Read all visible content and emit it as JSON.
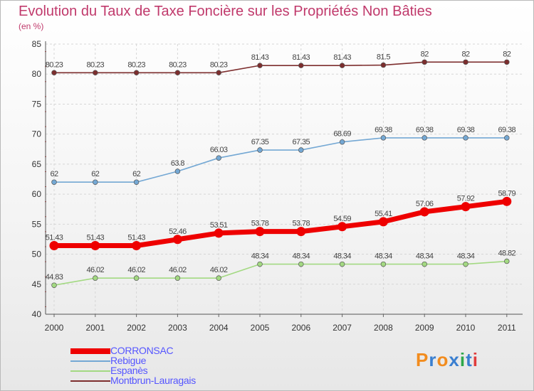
{
  "title": "Evolution du Taux de Taxe Foncière sur les Propriétés Non Bâties",
  "subtitle": "(en %)",
  "logo": {
    "text": "Proxiti",
    "letter_colors": [
      "#f28c1e",
      "#3a7fd0",
      "#f28c1e",
      "#3a7fd0",
      "#2ea84a",
      "#3a7fd0",
      "#e03c3c"
    ]
  },
  "chart_data": {
    "type": "line",
    "title": "Evolution du Taux de Taxe Foncière sur les Propriétés Non Bâties",
    "subtitle": "(en %)",
    "xlabel": "",
    "ylabel": "",
    "ylim": [
      40,
      85
    ],
    "yticks": [
      40,
      45,
      50,
      55,
      60,
      65,
      70,
      75,
      80,
      85
    ],
    "x": [
      "2000",
      "2001",
      "2002",
      "2003",
      "2004",
      "2005",
      "2006",
      "2007",
      "2008",
      "2009",
      "2010",
      "2011"
    ],
    "grid": true,
    "legend_position": "bottom-left",
    "series": [
      {
        "name": "CORRONSAC",
        "color": "#ee0000",
        "values": [
          51.43,
          51.43,
          51.43,
          52.46,
          53.51,
          53.78,
          53.78,
          54.59,
          55.41,
          57.06,
          57.92,
          58.79
        ],
        "labels": [
          "51.43",
          "51.43",
          "51.43",
          "52.46",
          "53.51",
          "53.78",
          "53.78",
          "54.59",
          "55.41",
          "57.06",
          "57.92",
          "58.79"
        ]
      },
      {
        "name": "Rebigue",
        "color": "#74a8d4",
        "values": [
          62,
          62,
          62,
          63.8,
          66.03,
          67.35,
          67.35,
          68.69,
          69.38,
          69.38,
          69.38,
          69.38
        ],
        "labels": [
          "62",
          "62",
          "62",
          "63.8",
          "66.03",
          "67.35",
          "67.35",
          "68.69",
          "69.38",
          "69.38",
          "69.38",
          "69.38"
        ]
      },
      {
        "name": "Espanès",
        "color": "#a3d982",
        "values": [
          44.83,
          46.02,
          46.02,
          46.02,
          46.02,
          48.34,
          48.34,
          48.34,
          48.34,
          48.34,
          48.34,
          48.82
        ],
        "labels": [
          "44.83",
          "46.02",
          "46.02",
          "46.02",
          "46.02",
          "48.34",
          "48.34",
          "48.34",
          "48.34",
          "48.34",
          "48.34",
          "48.82"
        ]
      },
      {
        "name": "Montbrun-Lauragais",
        "color": "#7d2e2e",
        "values": [
          80.23,
          80.23,
          80.23,
          80.23,
          80.23,
          81.43,
          81.43,
          81.43,
          81.5,
          82,
          82,
          82
        ],
        "labels": [
          "80.23",
          "80.23",
          "80.23",
          "80.23",
          "80.23",
          "81.43",
          "81.43",
          "81.43",
          "81.5",
          "82",
          "82",
          "82"
        ]
      }
    ]
  }
}
